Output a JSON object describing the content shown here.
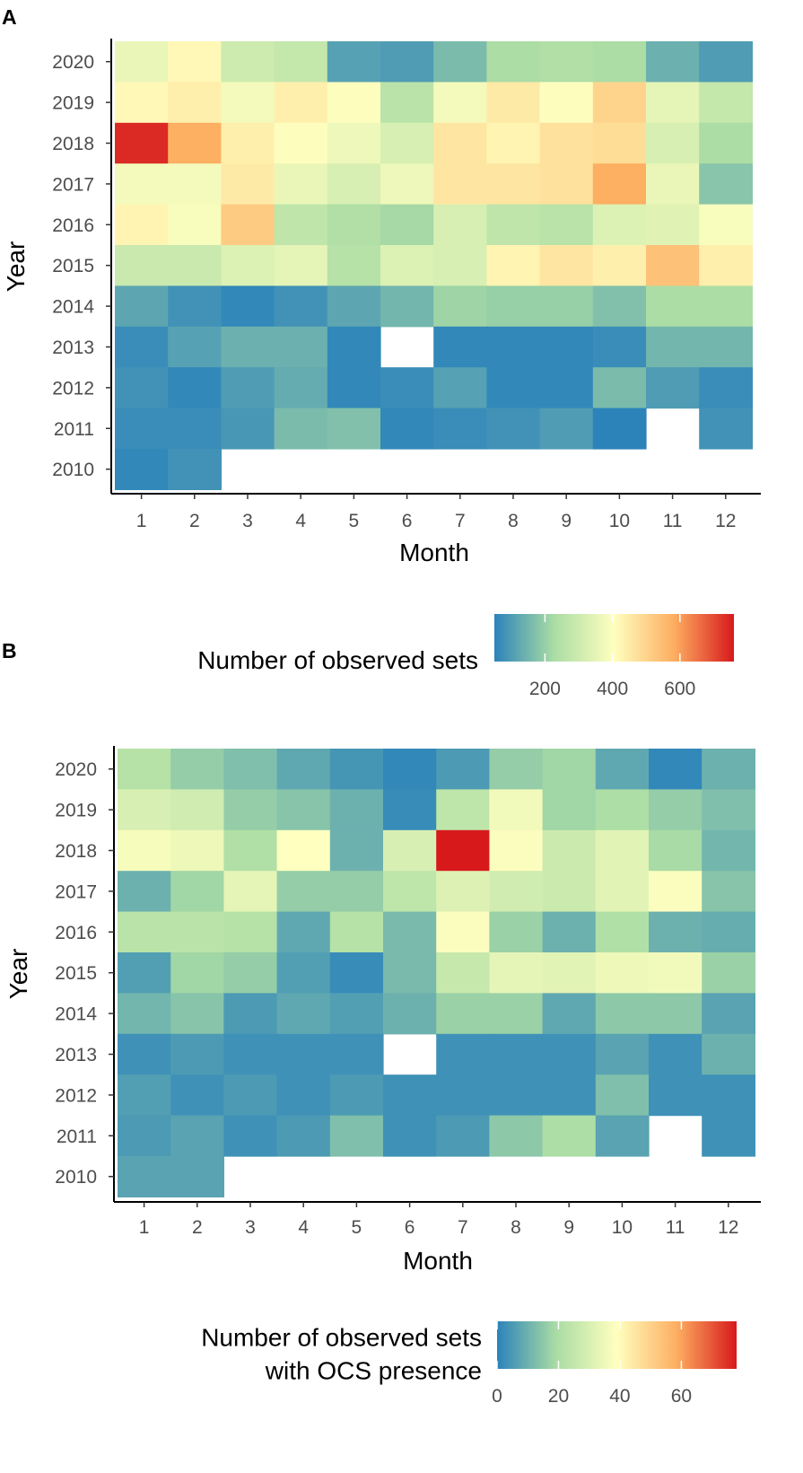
{
  "chart_data": [
    {
      "type": "heatmap",
      "panel_label": "A",
      "xlabel": "Month",
      "ylabel": "Year",
      "x": [
        1,
        2,
        3,
        4,
        5,
        6,
        7,
        8,
        9,
        10,
        11,
        12
      ],
      "x_tick_labels": [
        "1",
        "2",
        "3",
        "4",
        "5",
        "6",
        "7",
        "8",
        "9",
        "10",
        "11",
        "12"
      ],
      "y": [
        2020,
        2019,
        2018,
        2017,
        2016,
        2015,
        2014,
        2013,
        2012,
        2011,
        2010
      ],
      "y_tick_labels": [
        "2020",
        "2019",
        "2018",
        "2017",
        "2016",
        "2015",
        "2014",
        "2013",
        "2012",
        "2011",
        "2010"
      ],
      "values": [
        [
          360,
          420,
          300,
          280,
          110,
          100,
          160,
          230,
          240,
          230,
          140,
          100
        ],
        [
          420,
          440,
          380,
          440,
          400,
          260,
          380,
          450,
          400,
          500,
          350,
          280
        ],
        [
          740,
          580,
          440,
          400,
          370,
          320,
          460,
          430,
          470,
          480,
          320,
          230
        ],
        [
          380,
          380,
          450,
          360,
          320,
          370,
          460,
          460,
          470,
          580,
          360,
          180
        ],
        [
          430,
          390,
          520,
          270,
          240,
          220,
          320,
          270,
          260,
          330,
          340,
          390
        ],
        [
          290,
          290,
          330,
          350,
          250,
          330,
          320,
          430,
          460,
          440,
          540,
          440
        ],
        [
          120,
          80,
          60,
          80,
          120,
          150,
          210,
          200,
          200,
          170,
          230,
          230
        ],
        [
          70,
          110,
          140,
          140,
          60,
          null,
          60,
          60,
          60,
          70,
          150,
          150
        ],
        [
          80,
          60,
          100,
          130,
          60,
          70,
          110,
          60,
          60,
          160,
          100,
          70
        ],
        [
          70,
          70,
          90,
          160,
          170,
          60,
          70,
          80,
          100,
          50,
          null,
          80
        ],
        [
          60,
          80,
          null,
          null,
          null,
          null,
          null,
          null,
          null,
          null,
          null,
          null
        ]
      ],
      "legend": {
        "title_lines": [
          "Number of observed sets"
        ],
        "tick_labels": [
          "200",
          "400",
          "600"
        ],
        "ticks": [
          200,
          400,
          600
        ],
        "range": [
          50,
          760
        ],
        "position": "bottom-right"
      }
    },
    {
      "type": "heatmap",
      "panel_label": "B",
      "xlabel": "Month",
      "ylabel": "Year",
      "x": [
        1,
        2,
        3,
        4,
        5,
        6,
        7,
        8,
        9,
        10,
        11,
        12
      ],
      "x_tick_labels": [
        "1",
        "2",
        "3",
        "4",
        "5",
        "6",
        "7",
        "8",
        "9",
        "10",
        "11",
        "12"
      ],
      "y": [
        2020,
        2019,
        2018,
        2017,
        2016,
        2015,
        2014,
        2013,
        2012,
        2011,
        2010
      ],
      "y_tick_labels": [
        "2020",
        "2019",
        "2018",
        "2017",
        "2016",
        "2015",
        "2014",
        "2013",
        "2012",
        "2011",
        "2010"
      ],
      "values": [
        [
          22,
          16,
          13,
          8,
          4,
          1,
          5,
          16,
          18,
          8,
          1,
          10
        ],
        [
          30,
          28,
          16,
          14,
          10,
          2,
          24,
          36,
          18,
          20,
          16,
          13
        ],
        [
          37,
          35,
          21,
          39,
          10,
          30,
          78,
          38,
          27,
          32,
          19,
          11
        ],
        [
          10,
          18,
          33,
          16,
          16,
          24,
          31,
          28,
          27,
          32,
          38,
          14
        ],
        [
          23,
          23,
          22,
          8,
          22,
          12,
          38,
          17,
          10,
          21,
          10,
          9
        ],
        [
          6,
          18,
          16,
          6,
          2,
          12,
          26,
          33,
          32,
          35,
          36,
          17
        ],
        [
          11,
          14,
          5,
          8,
          6,
          10,
          17,
          17,
          8,
          15,
          15,
          7
        ],
        [
          3,
          5,
          3,
          3,
          3,
          null,
          3,
          3,
          3,
          7,
          3,
          10
        ],
        [
          6,
          3,
          5,
          3,
          5,
          3,
          3,
          3,
          3,
          13,
          3,
          3
        ],
        [
          5,
          7,
          3,
          5,
          13,
          3,
          5,
          15,
          20,
          7,
          null,
          3
        ],
        [
          7,
          7,
          null,
          null,
          null,
          null,
          null,
          null,
          null,
          null,
          null,
          null
        ]
      ],
      "legend": {
        "title_lines": [
          "Number of observed sets",
          "with OCS presence"
        ],
        "tick_labels": [
          "0",
          "20",
          "40",
          "60"
        ],
        "ticks": [
          0,
          20,
          40,
          60
        ],
        "range": [
          0,
          78
        ],
        "position": "bottom-right"
      }
    }
  ],
  "palette": {
    "stops": [
      "#2b83ba",
      "#abdda4",
      "#ffffbf",
      "#fdae61",
      "#d7191c"
    ],
    "text": "#000000",
    "tick_text": "#4d4d4d"
  }
}
